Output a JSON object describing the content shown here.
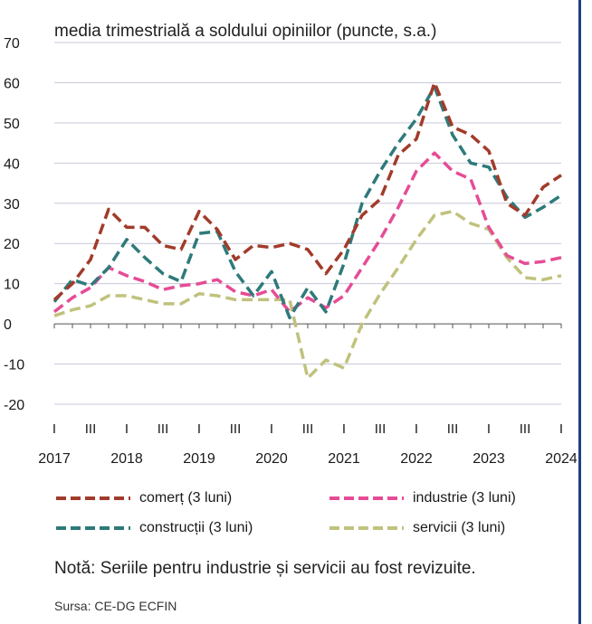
{
  "chart_data": {
    "type": "line",
    "subtitle": "media trimestrială a soldului opiniilor (puncte, s.a.)",
    "ylim": [
      -20,
      70
    ],
    "yticks": [
      70,
      60,
      50,
      40,
      30,
      20,
      10,
      0,
      -10,
      -20
    ],
    "quarter_tick_labels": [
      "I",
      "III",
      "I",
      "III",
      "I",
      "III",
      "I",
      "III",
      "I",
      "III",
      "I",
      "III",
      "I",
      "III",
      "I"
    ],
    "year_labels": [
      "2017",
      "2018",
      "2019",
      "2020",
      "2021",
      "2022",
      "2023",
      "2024"
    ],
    "grid": true,
    "legend_position": "bottom",
    "series": [
      {
        "name": "comerț (3 luni)",
        "color": "#a23b2a",
        "values": [
          6,
          10,
          16,
          28.5,
          24,
          24,
          19.5,
          18.5,
          28,
          23.5,
          16,
          19.5,
          19,
          20,
          18.5,
          12.5,
          18.5,
          27,
          31,
          42,
          46,
          60,
          49,
          47,
          43,
          30,
          27,
          34,
          37
        ]
      },
      {
        "name": "industrie (3 luni)",
        "color": "#e64c96",
        "values": [
          3,
          6.5,
          9,
          14,
          12,
          10.5,
          8.5,
          9.5,
          10,
          11,
          8,
          7,
          8.5,
          3,
          6.5,
          4,
          7,
          14,
          21,
          29,
          38,
          42.5,
          38,
          36,
          24,
          17,
          15,
          15.5,
          16.5
        ]
      },
      {
        "name": "construcții (3 luni)",
        "color": "#2e7a7a",
        "values": [
          5.5,
          11,
          9.5,
          14,
          21,
          16.5,
          12.5,
          10.5,
          22.5,
          23,
          13,
          7,
          13,
          1.5,
          9,
          3,
          15,
          30,
          38,
          45,
          51,
          59,
          47,
          40,
          39,
          31.5,
          26.5,
          29,
          32
        ]
      },
      {
        "name": "servicii (3 luni)",
        "color": "#c0c27d",
        "values": [
          2,
          3.5,
          4.5,
          7,
          7,
          6,
          5,
          5,
          7.5,
          7,
          6,
          6,
          6,
          6,
          -13.5,
          -9,
          -11,
          0,
          7.5,
          14,
          21,
          27,
          28,
          25,
          23.5,
          16.5,
          11.5,
          11,
          12
        ]
      }
    ]
  },
  "legend": {
    "commerce": "comerț (3 luni)",
    "industry": "industrie (3 luni)",
    "construction": "construcții (3 luni)",
    "services": "servicii (3 luni)"
  },
  "note": "Notă: Seriile pentru industrie și servicii au fost revizuite.",
  "source": "Sursa: CE-DG ECFIN"
}
